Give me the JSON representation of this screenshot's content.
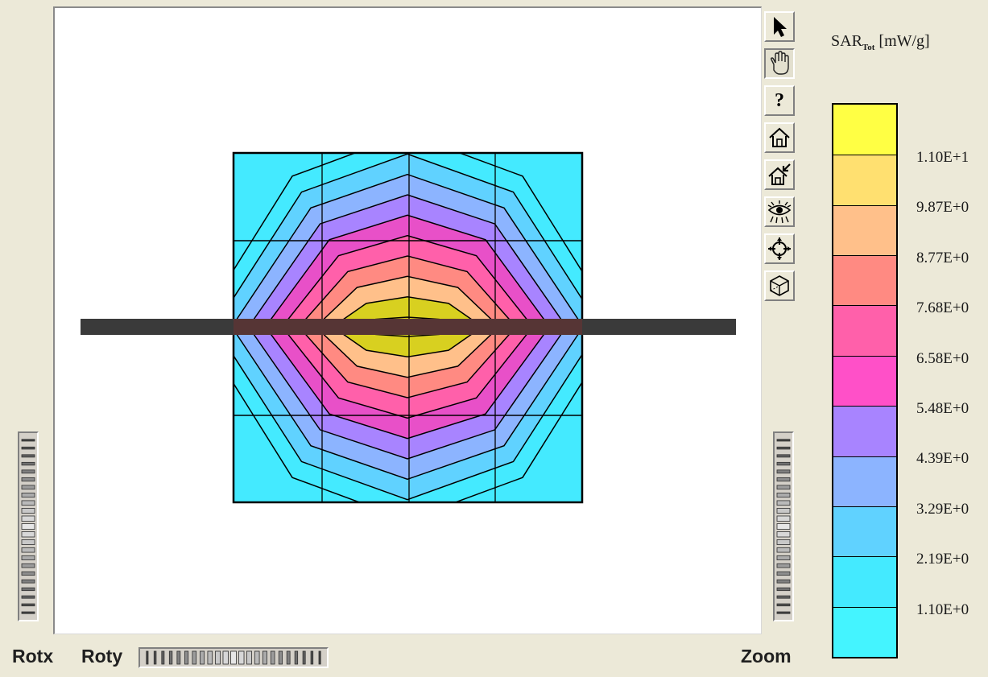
{
  "toolbar": {
    "tools": [
      {
        "name": "select-arrow-icon",
        "label": ""
      },
      {
        "name": "pan-hand-icon",
        "label": ""
      },
      {
        "name": "help-icon",
        "label": "?"
      },
      {
        "name": "home-icon",
        "label": ""
      },
      {
        "name": "home-zoom-icon",
        "label": ""
      },
      {
        "name": "eye-view-icon",
        "label": ""
      },
      {
        "name": "crosshair-icon",
        "label": ""
      },
      {
        "name": "cube-view-icon",
        "label": ""
      }
    ],
    "active_tool": "pan-hand-icon"
  },
  "wheels": {
    "rotx_label": "Rotx",
    "roty_label": "Roty",
    "zoom_label": "Zoom"
  },
  "legend": {
    "title_main": "SAR",
    "title_sub": "Tot",
    "title_unit": " [mW/g]",
    "ticks": [
      "1.10E+1",
      "9.87E+0",
      "8.77E+0",
      "7.68E+0",
      "6.58E+0",
      "5.48E+0",
      "4.39E+0",
      "3.29E+0",
      "2.19E+0",
      "1.10E+0"
    ],
    "band_colors": [
      "#ffff44",
      "#ffe070",
      "#ffc08a",
      "#ff8a82",
      "#ff60aa",
      "#ff50c8",
      "#a884ff",
      "#8cb4ff",
      "#60d2ff",
      "#44eaff",
      "#44f4ff"
    ]
  },
  "scene": {
    "contour_colors": [
      "#d8d020",
      "#ffc08a",
      "#ff8a82",
      "#ff60aa",
      "#e850c8",
      "#a884ff",
      "#8cb4ff",
      "#60d2ff",
      "#44eaff"
    ],
    "probe_bar_color": "#3a3a3a"
  }
}
